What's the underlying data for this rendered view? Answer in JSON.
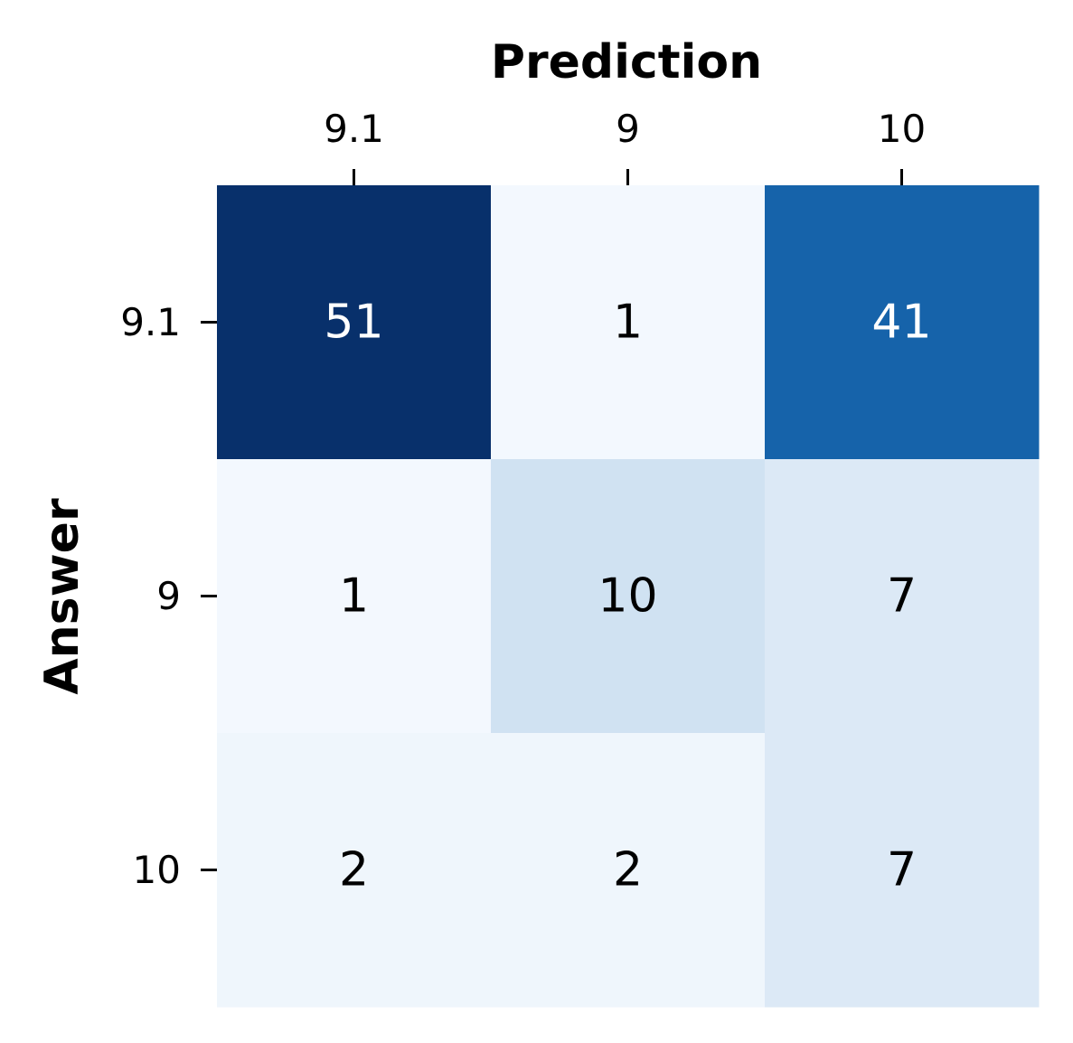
{
  "chart_data": {
    "type": "heatmap",
    "xlabel": "Prediction",
    "ylabel": "Answer",
    "x_categories": [
      "9.1",
      "9",
      "10"
    ],
    "y_categories": [
      "9.1",
      "9",
      "10"
    ],
    "values": [
      [
        51,
        1,
        41
      ],
      [
        1,
        10,
        7
      ],
      [
        2,
        2,
        7
      ]
    ],
    "colormap": "Blues",
    "color_range": [
      0,
      51
    ],
    "colorbar": false,
    "x_axis_position": "top",
    "text_color_light": "#ffffff",
    "text_color_dark": "#000000"
  }
}
